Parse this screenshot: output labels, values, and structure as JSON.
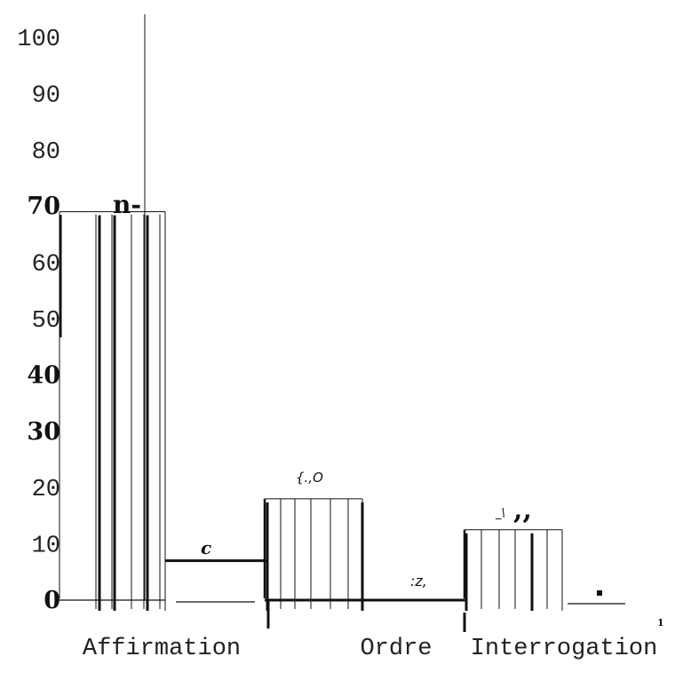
{
  "chart_data": {
    "type": "bar",
    "title": "",
    "xlabel": "",
    "ylabel": "",
    "ylim": [
      0,
      100
    ],
    "yticks": [
      {
        "value": 0,
        "label": "0",
        "style": "serif"
      },
      {
        "value": 10,
        "label": "10",
        "style": "mono"
      },
      {
        "value": 20,
        "label": "20",
        "style": "mono"
      },
      {
        "value": 30,
        "label": "30",
        "style": "serif"
      },
      {
        "value": 40,
        "label": "40",
        "style": "serif"
      },
      {
        "value": 50,
        "label": "50",
        "style": "mono"
      },
      {
        "value": 60,
        "label": "60",
        "style": "mono"
      },
      {
        "value": 70,
        "label": "70",
        "style": "serif"
      },
      {
        "value": 80,
        "label": "80",
        "style": "mono"
      },
      {
        "value": 90,
        "label": "90",
        "style": "mono"
      },
      {
        "value": 100,
        "label": "100",
        "style": "mono"
      }
    ],
    "categories": [
      "Affirmation",
      "Ordre",
      "Interrogation"
    ],
    "values": [
      69,
      18,
      12.5
    ],
    "connector_values": [
      7,
      0,
      0
    ],
    "annotations": [
      "n-",
      "c",
      "{.,O",
      ":z,",
      "_\\",
      ",,",
      "1"
    ],
    "grid": false
  }
}
